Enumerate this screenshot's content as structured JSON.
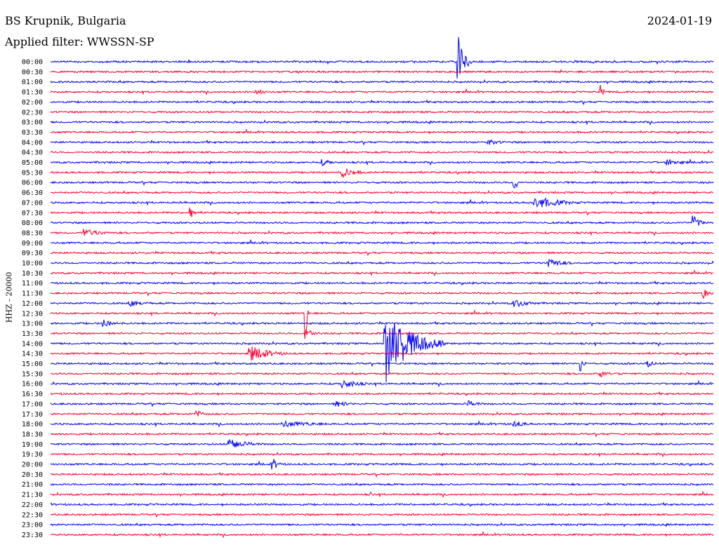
{
  "header": {
    "station": "BS Krupnik, Bulgaria",
    "filter": "Applied filter: WWSSN-SP",
    "date": "2024-01-19"
  },
  "channel_label": "HHZ - 20000",
  "colors": {
    "blue": "#0000ff",
    "red": "#ff0033"
  },
  "chart_data": {
    "type": "line",
    "title": "",
    "y_tick_labels": [
      "00:00",
      "00:30",
      "01:00",
      "01:30",
      "02:00",
      "02:30",
      "03:00",
      "03:30",
      "04:00",
      "04:30",
      "05:00",
      "05:30",
      "06:00",
      "06:30",
      "07:00",
      "07:30",
      "08:00",
      "08:30",
      "09:00",
      "09:30",
      "10:00",
      "10:30",
      "11:00",
      "11:30",
      "12:00",
      "12:30",
      "13:00",
      "13:30",
      "14:00",
      "14:30",
      "15:00",
      "15:30",
      "16:00",
      "16:30",
      "17:00",
      "17:30",
      "18:00",
      "18:30",
      "19:00",
      "19:30",
      "20:00",
      "20:30",
      "21:00",
      "21:30",
      "22:00",
      "22:30",
      "23:00",
      "23:30"
    ],
    "trace_color_order": [
      "blue",
      "red"
    ],
    "events": [
      {
        "row": 0,
        "t": 0.615,
        "amp": 55,
        "dur": 0.02
      },
      {
        "row": 3,
        "t": 0.31,
        "amp": 4,
        "dur": 0.06
      },
      {
        "row": 3,
        "t": 0.83,
        "amp": 10,
        "dur": 0.01
      },
      {
        "row": 8,
        "t": 0.66,
        "amp": 4,
        "dur": 0.07
      },
      {
        "row": 10,
        "t": 0.41,
        "amp": 5,
        "dur": 0.04
      },
      {
        "row": 10,
        "t": 0.93,
        "amp": 5,
        "dur": 0.07
      },
      {
        "row": 11,
        "t": 0.44,
        "amp": 8,
        "dur": 0.06
      },
      {
        "row": 12,
        "t": 0.7,
        "amp": 14,
        "dur": 0.01
      },
      {
        "row": 14,
        "t": 0.73,
        "amp": 10,
        "dur": 0.1
      },
      {
        "row": 15,
        "t": 0.21,
        "amp": 16,
        "dur": 0.01
      },
      {
        "row": 16,
        "t": 0.97,
        "amp": 10,
        "dur": 0.03
      },
      {
        "row": 17,
        "t": 0.05,
        "amp": 6,
        "dur": 0.08
      },
      {
        "row": 20,
        "t": 0.75,
        "amp": 8,
        "dur": 0.06
      },
      {
        "row": 23,
        "t": 0.985,
        "amp": 8,
        "dur": 0.02
      },
      {
        "row": 24,
        "t": 0.12,
        "amp": 5,
        "dur": 0.06
      },
      {
        "row": 24,
        "t": 0.7,
        "amp": 6,
        "dur": 0.07
      },
      {
        "row": 25,
        "t": 0.385,
        "amp": 55,
        "dur": 0.003
      },
      {
        "row": 26,
        "t": 0.08,
        "amp": 6,
        "dur": 0.05
      },
      {
        "row": 27,
        "t": 0.385,
        "amp": 10,
        "dur": 0.03
      },
      {
        "row": 28,
        "t": 0.505,
        "amp": 60,
        "dur": 0.09
      },
      {
        "row": 29,
        "t": 0.3,
        "amp": 12,
        "dur": 0.08
      },
      {
        "row": 30,
        "t": 0.8,
        "amp": 12,
        "dur": 0.01
      },
      {
        "row": 30,
        "t": 0.9,
        "amp": 6,
        "dur": 0.03
      },
      {
        "row": 31,
        "t": 0.83,
        "amp": 5,
        "dur": 0.04
      },
      {
        "row": 32,
        "t": 0.44,
        "amp": 7,
        "dur": 0.07
      },
      {
        "row": 34,
        "t": 0.43,
        "amp": 5,
        "dur": 0.06
      },
      {
        "row": 34,
        "t": 0.63,
        "amp": 5,
        "dur": 0.05
      },
      {
        "row": 35,
        "t": 0.22,
        "amp": 5,
        "dur": 0.04
      },
      {
        "row": 36,
        "t": 0.35,
        "amp": 5,
        "dur": 0.15
      },
      {
        "row": 36,
        "t": 0.7,
        "amp": 5,
        "dur": 0.05
      },
      {
        "row": 38,
        "t": 0.27,
        "amp": 8,
        "dur": 0.08
      },
      {
        "row": 40,
        "t": 0.335,
        "amp": 10,
        "dur": 0.02
      },
      {
        "row": 43,
        "t": 0.485,
        "amp": 4,
        "dur": 0.005
      }
    ]
  }
}
